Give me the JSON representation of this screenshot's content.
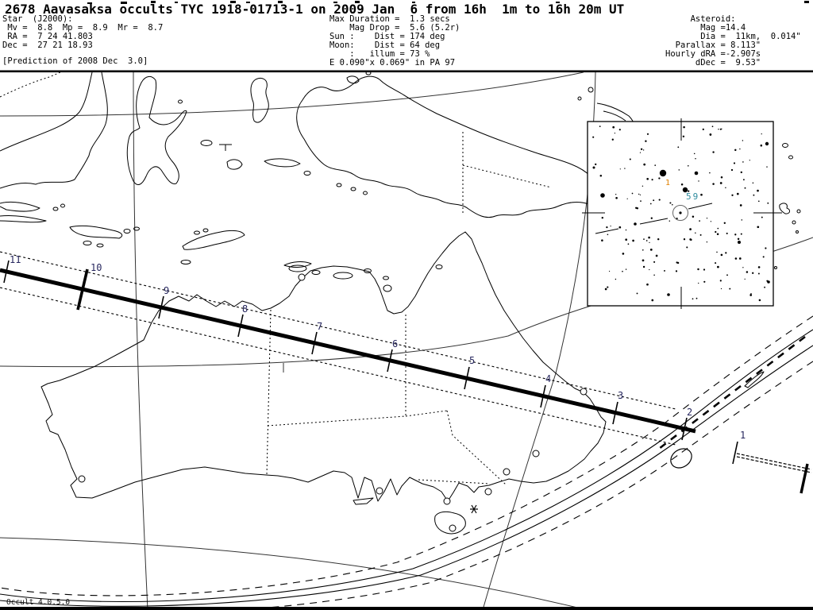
{
  "title": "2678 Aavasaksa occults TYC 1918-01713-1 on 2009 Jan  6 from 16h  1m to 16h 20m UT",
  "header": {
    "star_block": "Star  (J2000):\n Mv =  8.8  Mp =  8.9  Mr =  8.7\n RA =  7 24 41.803\nDec =  27 21 18.93",
    "prediction_note": "[Prediction of 2008 Dec  3.0]",
    "event_block": "Max Duration =  1.3 secs\n    Mag Drop =  5.6 (5.2r)\nSun :    Dist = 174 deg\nMoon:    Dist = 64 deg\n    :   illum = 73 %\nE 0.090\"x 0.069\" in PA 97",
    "asteroid_block": "     Asteroid:\n       Mag =14.4\n       Dia =  11km,  0.014\"\n  Parallax = 8.113\"\nHourly dRA =-2.907s\n      dDec =  9.53\""
  },
  "map": {
    "tick_labels": [
      "11",
      "10",
      "9",
      "8",
      "7",
      "6",
      "5",
      "4",
      "3",
      "2",
      "1"
    ],
    "footer_version": "Occult 4.0.5.0",
    "tick_label_color": "#26265e"
  },
  "inset": {
    "bright_star_label": "1",
    "bright_star_label_color": "#e08000",
    "star_59_label": "59",
    "star_59_label_color": "#2e8b9e",
    "star_count": 175,
    "seed": 20090106
  }
}
